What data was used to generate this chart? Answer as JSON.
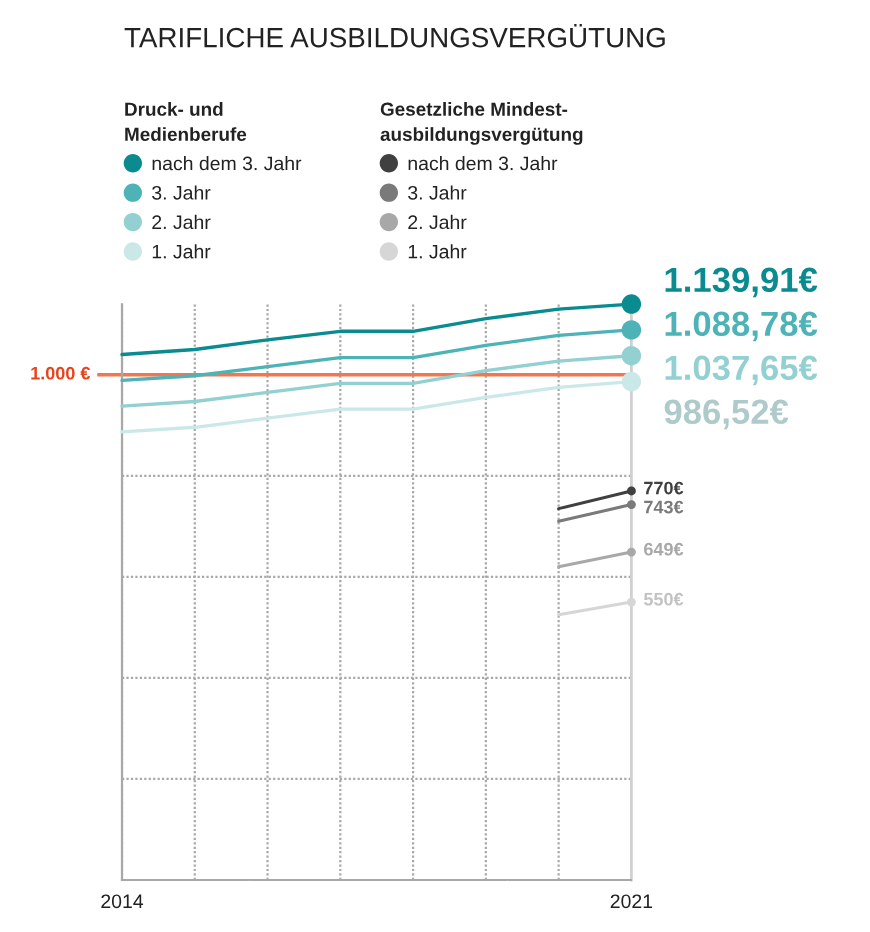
{
  "chart_data": {
    "type": "line",
    "title": "TARIFLICHE AUSBILDUNGSVERGÜTUNG",
    "annotations": [
      "Druck- und\nMedienberufe",
      "Gesetzliche Mindest-\nausbildungsvergütung"
    ],
    "x": [
      2014,
      2015,
      2016,
      2017,
      2018,
      2019,
      2020,
      2021
    ],
    "series": [
      {
        "name": "nach dem 3. Jahr",
        "color": "#0a8b90",
        "values": [
          1040,
          1050,
          1069,
          1086,
          1086,
          1111,
          1130,
          1139.91
        ],
        "value_labels": [
          null,
          null,
          null,
          null,
          null,
          null,
          null,
          "1.139,91€"
        ]
      },
      {
        "name": "3. Jahr",
        "color": "#4db3b7",
        "values": [
          989,
          998,
          1016,
          1034,
          1034,
          1058,
          1078,
          1088.78
        ],
        "value_labels": [
          null,
          null,
          null,
          null,
          null,
          null,
          null,
          "1.088,78€"
        ]
      },
      {
        "name": "2. Jahr",
        "color": "#93d0d2",
        "values": [
          938,
          947,
          965,
          983,
          983,
          1008,
          1027,
          1037.65
        ],
        "value_labels": [
          null,
          null,
          null,
          null,
          null,
          null,
          null,
          "1.037,65€"
        ]
      },
      {
        "name": "1. Jahr",
        "color": "#cbe8e9",
        "values": [
          887,
          896,
          914,
          932,
          932,
          955,
          975,
          986.52
        ],
        "value_labels": [
          null,
          null,
          null,
          null,
          null,
          null,
          null,
          "986,52€"
        ]
      },
      {
        "name": "nach dem 3. Jahr",
        "color": "#404040",
        "values": [
          null,
          null,
          null,
          null,
          null,
          null,
          735,
          770
        ],
        "value_labels": [
          null,
          null,
          null,
          null,
          null,
          null,
          null,
          "770€"
        ]
      },
      {
        "name": "3. Jahr",
        "color": "#7a7a7a",
        "values": [
          null,
          null,
          null,
          null,
          null,
          null,
          710,
          743
        ],
        "value_labels": [
          null,
          null,
          null,
          null,
          null,
          null,
          null,
          "743€"
        ]
      },
      {
        "name": "2. Jahr",
        "color": "#a8a8a8",
        "values": [
          null,
          null,
          null,
          null,
          null,
          null,
          620,
          649
        ],
        "value_labels": [
          null,
          null,
          null,
          null,
          null,
          null,
          null,
          "649€"
        ]
      },
      {
        "name": "1. Jahr",
        "color": "#d6d6d6",
        "values": [
          null,
          null,
          null,
          null,
          null,
          null,
          525,
          550
        ],
        "value_labels": [
          null,
          null,
          null,
          null,
          null,
          null,
          null,
          "550€"
        ]
      }
    ],
    "ref_lines": [
      {
        "axis": "y",
        "value": 1000,
        "label": "1.000 €",
        "color": "#f07850"
      }
    ],
    "xlim": [
      2014,
      2021
    ],
    "xticks": [
      2014,
      {
        "value": 2015,
        "label": null
      },
      {
        "value": 2016,
        "label": null
      },
      {
        "value": 2017,
        "label": null
      },
      {
        "value": 2018,
        "label": null
      },
      {
        "value": 2019,
        "label": null
      },
      {
        "value": 2020,
        "label": null
      },
      2021
    ],
    "ylim": [
      0,
      1140
    ],
    "yticks": [
      {
        "value": 0,
        "label": null
      },
      {
        "value": 200,
        "label": null
      },
      {
        "value": 400,
        "label": null
      },
      {
        "value": 600,
        "label": null
      },
      {
        "value": 800,
        "label": null
      }
    ],
    "tick_labels": "x",
    "grid": true,
    "legend": "top",
    "line_style": "solid"
  }
}
